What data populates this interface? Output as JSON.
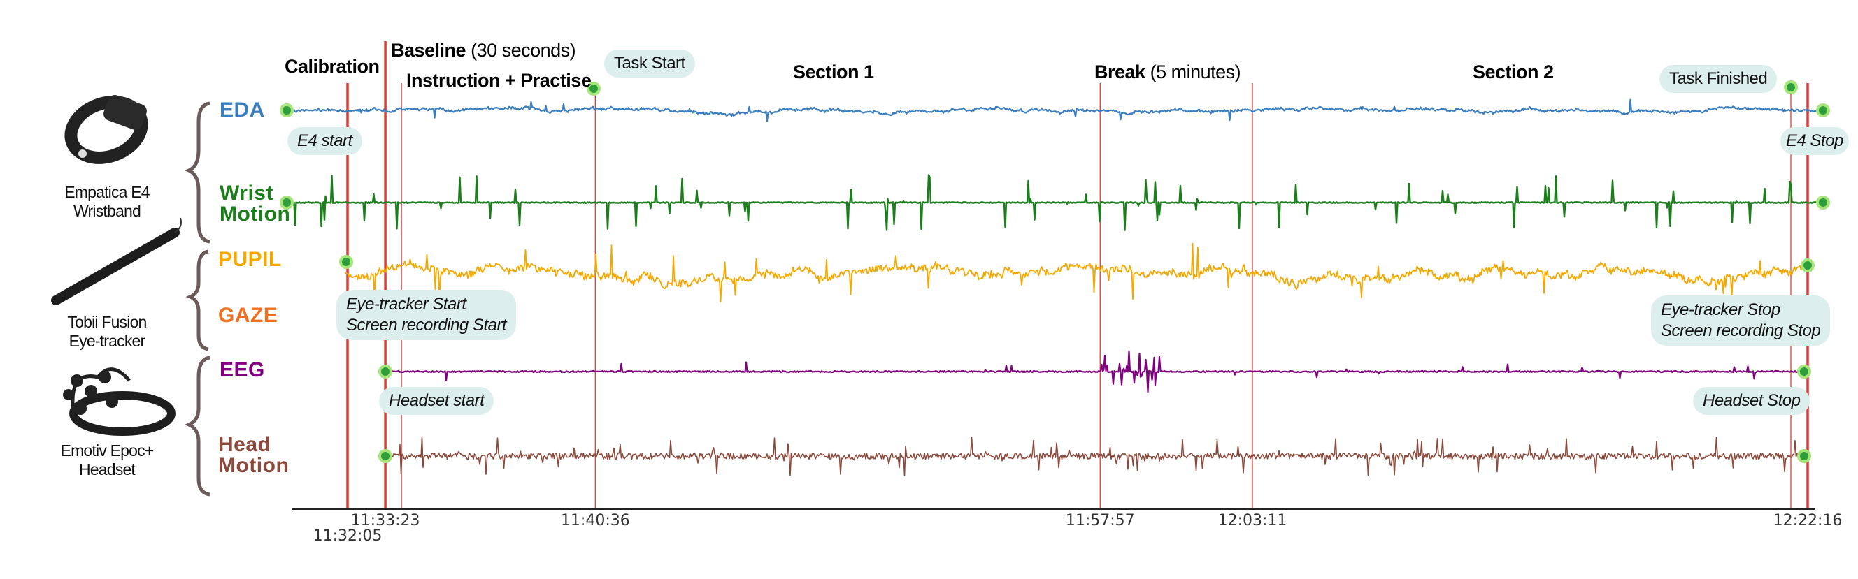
{
  "chart_data": {
    "type": "line",
    "title": "",
    "xlabel": "",
    "ylabel": "",
    "grid": false,
    "x_tick_labels": [
      "11:32:05",
      "11:33:23",
      "11:40:36",
      "11:57:57",
      "12:03:11",
      "12:22:16"
    ],
    "x_range": [
      "11:32:05",
      "12:22:16"
    ],
    "series": [
      {
        "name": "EDA",
        "color": "#3a7ebf",
        "device": "Empatica E4 Wristband"
      },
      {
        "name": "Wrist Motion",
        "color": "#1a7f1a",
        "device": "Empatica E4 Wristband"
      },
      {
        "name": "PUPIL",
        "color": "#f5a800",
        "device": "Tobii Fusion Eye-tracker"
      },
      {
        "name": "GAZE",
        "color": "#f07020",
        "device": "Tobii Fusion Eye-tracker"
      },
      {
        "name": "EEG",
        "color": "#800080",
        "device": "Emotiv Epoc+ Headset"
      },
      {
        "name": "Head Motion",
        "color": "#8b4a3c",
        "device": "Emotiv Epoc+ Headset"
      }
    ],
    "phases": {
      "calibration": "Calibration",
      "baseline": "Baseline",
      "baseline_note": "(30 seconds)",
      "instruction": "Instruction + Practise",
      "section1": "Section 1",
      "break": "Break",
      "break_note": "(5 minutes)",
      "section2": "Section 2"
    },
    "events": {
      "task_start": "Task Start",
      "task_finished": "Task Finished",
      "e4_start": "E4 start",
      "e4_stop": "E4 Stop",
      "eye_start": [
        "Eye-tracker Start",
        "Screen recording Start"
      ],
      "eye_stop": [
        "Eye-tracker Stop",
        "Screen recording Stop"
      ],
      "headset_start": "Headset start",
      "headset_stop": "Headset Stop"
    },
    "marker_color": "#e53935",
    "event_dot_color": "#4caf50"
  },
  "devices": [
    {
      "lines": [
        "Empatica E4",
        "Wristband"
      ],
      "icon": "wristband-icon"
    },
    {
      "lines": [
        "Tobii Fusion",
        "Eye-tracker"
      ],
      "icon": "eye-tracker-bar-icon"
    },
    {
      "lines": [
        "Emotiv Epoc+",
        "Headset"
      ],
      "icon": "eeg-headset-icon"
    }
  ],
  "signal_labels": {
    "eda": "EDA",
    "wrist": [
      "Wrist",
      "Motion"
    ],
    "pupil": "PUPIL",
    "gaze": "GAZE",
    "eeg": "EEG",
    "head": [
      "Head",
      "Motion"
    ]
  }
}
